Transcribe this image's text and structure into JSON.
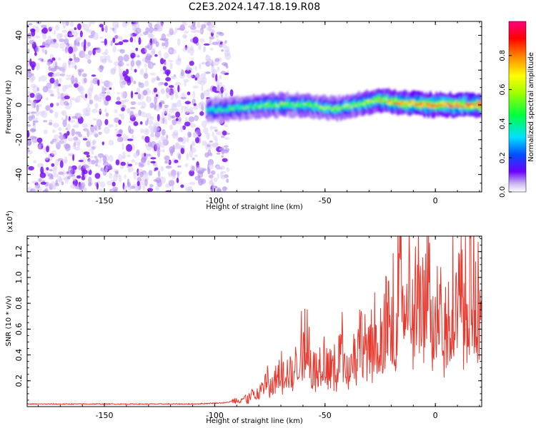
{
  "chart_data": [
    {
      "type": "heatmap",
      "title": "C2E3.2024.147.18.19.R08",
      "xlabel": "Height of straight line (km)",
      "ylabel": "Frequency (Hz)",
      "xlim": [
        -185,
        21
      ],
      "ylim": [
        -50,
        48
      ],
      "xticks": [
        -150,
        -100,
        -50,
        0
      ],
      "yticks": [
        -40,
        -20,
        0,
        20,
        40
      ],
      "colorbar": {
        "label": "Normalized spectral amplitude",
        "range": [
          0,
          1
        ],
        "ticks": [
          "0.0",
          "0.2",
          "0.4",
          "0.6",
          "0.8"
        ]
      },
      "noise_region_x": [
        -185,
        -94
      ],
      "signal_band": {
        "x": [
          -103,
          -90,
          -75,
          -60,
          -45,
          -35,
          -25,
          -15,
          0,
          10,
          21
        ],
        "freq_center": [
          -3,
          -2,
          0,
          0,
          -2,
          0,
          3,
          1,
          0,
          0,
          0
        ],
        "peak_amplitude": [
          0.45,
          0.5,
          0.6,
          0.6,
          0.6,
          0.65,
          0.75,
          0.9,
          0.95,
          1.0,
          1.0
        ]
      }
    },
    {
      "type": "line",
      "xlabel": "Height of straight line (km)",
      "ylabel": "SNR (10 * v/v)",
      "scale_label": "(x10",
      "scale_exp": "4",
      "scale_close": ")",
      "xlim": [
        -185,
        21
      ],
      "ylim": [
        0,
        1.32
      ],
      "xticks": [
        -150,
        -100,
        -50,
        0
      ],
      "yticks": [
        "0.2",
        "0.4",
        "0.6",
        "0.8",
        "1.0",
        "1.2"
      ],
      "series": [
        {
          "name": "SNR",
          "color": "#e8392f",
          "x": [
            -185,
            -160,
            -130,
            -110,
            -95,
            -90,
            -85,
            -80,
            -76,
            -74,
            -70,
            -66,
            -62,
            -59,
            -55,
            -50,
            -46,
            -42,
            -38,
            -34,
            -30,
            -28,
            -25,
            -22,
            -20,
            -19,
            -18,
            -16,
            -14,
            -12,
            -10,
            -8,
            -6,
            -4,
            -2,
            0,
            2,
            3,
            5,
            7,
            10,
            13,
            16,
            19,
            21
          ],
          "y": [
            0.02,
            0.02,
            0.02,
            0.02,
            0.03,
            0.05,
            0.07,
            0.12,
            0.22,
            0.15,
            0.3,
            0.25,
            0.35,
            0.65,
            0.28,
            0.4,
            0.3,
            0.5,
            0.35,
            0.55,
            0.4,
            0.62,
            0.5,
            0.7,
            0.55,
            0.8,
            0.6,
            1.33,
            0.85,
            1.0,
            0.65,
            1.05,
            0.7,
            1.12,
            0.75,
            0.6,
            1.26,
            0.8,
            0.65,
            1.0,
            0.85,
            0.95,
            1.05,
            0.9,
            1.0
          ]
        }
      ]
    }
  ]
}
